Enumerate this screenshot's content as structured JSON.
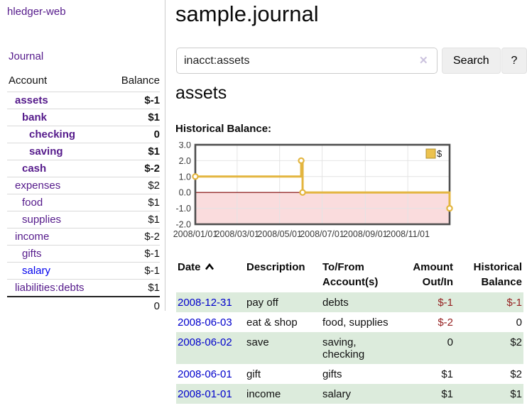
{
  "app": {
    "brand": "hledger-web"
  },
  "sidebar": {
    "journal_link": "Journal",
    "accounts_table": {
      "account_header": "Account",
      "balance_header": "Balance",
      "rows": [
        {
          "name": "assets",
          "depth": 1,
          "bold": true,
          "balance": "$-1",
          "balance_style": "neg-strong"
        },
        {
          "name": "bank",
          "depth": 2,
          "bold": true,
          "balance": "$1",
          "balance_style": "normal"
        },
        {
          "name": "checking",
          "depth": 3,
          "bold": true,
          "balance": "0",
          "balance_style": "normal"
        },
        {
          "name": "saving",
          "depth": 3,
          "bold": true,
          "balance": "$1",
          "balance_style": "normal"
        },
        {
          "name": "cash",
          "depth": 2,
          "bold": true,
          "balance": "$-2",
          "balance_style": "neg-strong"
        },
        {
          "name": "expenses",
          "depth": 1,
          "bold": false,
          "balance": "$2",
          "balance_style": "normal"
        },
        {
          "name": "food",
          "depth": 2,
          "bold": false,
          "balance": "$1",
          "balance_style": "normal"
        },
        {
          "name": "supplies",
          "depth": 2,
          "bold": false,
          "balance": "$1",
          "balance_style": "normal"
        },
        {
          "name": "income",
          "depth": 1,
          "bold": false,
          "balance": "$-2",
          "balance_style": "neg-dim"
        },
        {
          "name": "gifts",
          "depth": 2,
          "bold": false,
          "balance": "$-1",
          "balance_style": "neg-dim"
        },
        {
          "name": "salary",
          "depth": 2,
          "bold": false,
          "balance": "$-1",
          "balance_style": "neg-dim",
          "link_color": "blue"
        },
        {
          "name": "liabilities:debts",
          "depth": 1,
          "bold": false,
          "balance": "$1",
          "balance_style": "normal"
        }
      ],
      "total": "0"
    }
  },
  "main": {
    "title": "sample.journal",
    "search": {
      "value": "inacct:assets",
      "clear_icon": "✕",
      "search_button": "Search",
      "help_button": "?"
    },
    "account_heading": "assets",
    "chart_title": "Historical Balance:"
  },
  "chart_data": {
    "type": "line",
    "step": true,
    "title": "Historical Balance:",
    "x_domain": [
      "2008-01-01",
      "2008-12-31"
    ],
    "ylim": [
      -2,
      3
    ],
    "ytick_values": [
      3,
      2,
      1,
      0,
      -1,
      -2
    ],
    "ytick_labels": [
      "3.0",
      "2.0",
      "1.0",
      "0.0",
      "-1.0",
      "-2.0"
    ],
    "xticks": [
      {
        "label": "2008/01/01",
        "date": "2008-01-01"
      },
      {
        "label": "2008/03/01",
        "date": "2008-03-01"
      },
      {
        "label": "2008/05/01",
        "date": "2008-05-01"
      },
      {
        "label": "2008/07/01",
        "date": "2008-07-01"
      },
      {
        "label": "2008/09/01",
        "date": "2008-09-01"
      },
      {
        "label": "2008/11/01",
        "date": "2008-11-01"
      }
    ],
    "series": [
      {
        "name": "$",
        "color": "#E3B53F",
        "points": [
          [
            "2008-01-01",
            1.0
          ],
          [
            "2008-06-01",
            2.0
          ],
          [
            "2008-06-03",
            0.0
          ],
          [
            "2008-12-31",
            -1.0
          ]
        ]
      }
    ],
    "legend": {
      "position": "top-right",
      "entries": [
        {
          "label": "$",
          "swatch_color": "#ECC24E",
          "swatch_border": "#B0902F"
        }
      ]
    },
    "grid": true,
    "negative_region_color": "#FADCDD",
    "zero_line_color": "#7D0000",
    "border_color": "#4E4E4E",
    "grid_color": "#E4E4E4",
    "marker_fill": "#FFFFFF"
  },
  "register_table": {
    "headers": {
      "date": "Date",
      "description": "Description",
      "accounts": "To/From Account(s)",
      "amount": "Amount Out/In",
      "balance": "Historical Balance",
      "sort_indicator": "chevron-up"
    },
    "rows": [
      {
        "date": "2008-12-31",
        "description": "pay off",
        "accounts": "debts",
        "amount": "$-1",
        "amount_negative": true,
        "balance": "$-1",
        "balance_negative": true
      },
      {
        "date": "2008-06-03",
        "description": "eat & shop",
        "accounts": "food, supplies",
        "amount": "$-2",
        "amount_negative": true,
        "balance": "0",
        "balance_negative": false
      },
      {
        "date": "2008-06-02",
        "description": "save",
        "accounts": "saving, checking",
        "amount": "0",
        "amount_negative": false,
        "balance": "$2",
        "balance_negative": false
      },
      {
        "date": "2008-06-01",
        "description": "gift",
        "accounts": "gifts",
        "amount": "$1",
        "amount_negative": false,
        "balance": "$2",
        "balance_negative": false
      },
      {
        "date": "2008-01-01",
        "description": "income",
        "accounts": "salary",
        "amount": "$1",
        "amount_negative": false,
        "balance": "$1",
        "balance_negative": false
      }
    ]
  }
}
